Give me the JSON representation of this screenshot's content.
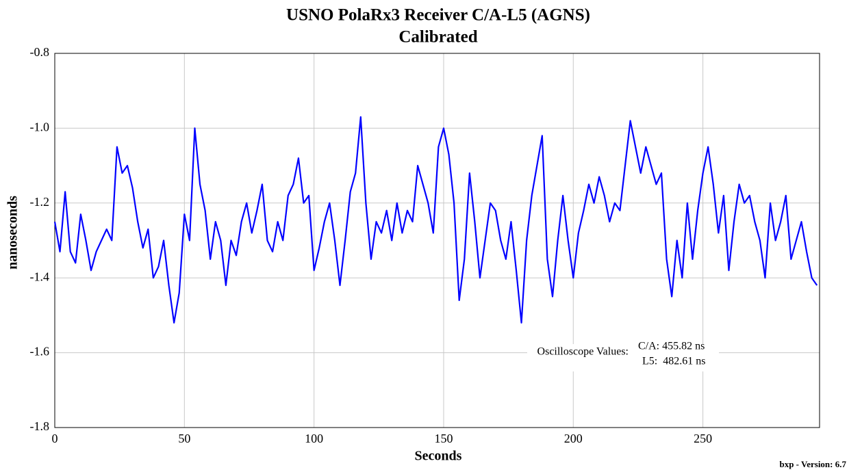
{
  "chart_data": {
    "type": "line",
    "title": "USNO PolaRx3 Receiver C/A-L5 (AGNS)",
    "subtitle": "Calibrated",
    "x_label": "Seconds",
    "y_label": "nanoseconds",
    "footer": "bxp - Version: 6.7",
    "annotation": {
      "label": "Oscilloscope Values:",
      "lines": [
        "C/A: 455.82 ns",
        "L5:  482.61 ns"
      ]
    },
    "x": [
      0,
      2,
      4,
      6,
      8,
      10,
      12,
      14,
      16,
      18,
      20,
      22,
      24,
      26,
      28,
      30,
      32,
      34,
      36,
      38,
      40,
      42,
      44,
      46,
      48,
      50,
      52,
      54,
      56,
      58,
      60,
      62,
      64,
      66,
      68,
      70,
      72,
      74,
      76,
      78,
      80,
      82,
      84,
      86,
      88,
      90,
      92,
      94,
      96,
      98,
      100,
      102,
      104,
      106,
      108,
      110,
      112,
      114,
      116,
      118,
      120,
      122,
      124,
      126,
      128,
      130,
      132,
      134,
      136,
      138,
      140,
      142,
      144,
      146,
      148,
      150,
      152,
      154,
      156,
      158,
      160,
      162,
      164,
      166,
      168,
      170,
      172,
      174,
      176,
      178,
      180,
      182,
      184,
      186,
      188,
      190,
      192,
      194,
      196,
      198,
      200,
      202,
      204,
      206,
      208,
      210,
      212,
      214,
      216,
      218,
      220,
      222,
      224,
      226,
      228,
      230,
      232,
      234,
      236,
      238,
      240,
      242,
      244,
      246,
      248,
      250,
      252,
      254,
      256,
      258,
      260,
      262,
      264,
      266,
      268,
      270,
      272,
      274,
      276,
      278,
      280,
      282,
      284,
      286,
      288,
      290,
      292,
      294
    ],
    "series": [
      {
        "name": "C/A-L5",
        "color": "#0000ff",
        "values": [
          -1.25,
          -1.33,
          -1.17,
          -1.33,
          -1.36,
          -1.23,
          -1.3,
          -1.38,
          -1.33,
          -1.3,
          -1.27,
          -1.3,
          -1.05,
          -1.12,
          -1.1,
          -1.16,
          -1.25,
          -1.32,
          -1.27,
          -1.4,
          -1.37,
          -1.3,
          -1.42,
          -1.52,
          -1.44,
          -1.23,
          -1.3,
          -1.0,
          -1.15,
          -1.22,
          -1.35,
          -1.25,
          -1.3,
          -1.42,
          -1.3,
          -1.34,
          -1.25,
          -1.2,
          -1.28,
          -1.22,
          -1.15,
          -1.3,
          -1.33,
          -1.25,
          -1.3,
          -1.18,
          -1.15,
          -1.08,
          -1.2,
          -1.18,
          -1.38,
          -1.32,
          -1.25,
          -1.2,
          -1.3,
          -1.42,
          -1.3,
          -1.17,
          -1.12,
          -0.97,
          -1.2,
          -1.35,
          -1.25,
          -1.28,
          -1.22,
          -1.3,
          -1.2,
          -1.28,
          -1.22,
          -1.25,
          -1.1,
          -1.15,
          -1.2,
          -1.28,
          -1.05,
          -1.0,
          -1.07,
          -1.2,
          -1.46,
          -1.35,
          -1.12,
          -1.25,
          -1.4,
          -1.3,
          -1.2,
          -1.22,
          -1.3,
          -1.35,
          -1.25,
          -1.38,
          -1.52,
          -1.3,
          -1.18,
          -1.1,
          -1.02,
          -1.35,
          -1.45,
          -1.3,
          -1.18,
          -1.3,
          -1.4,
          -1.28,
          -1.22,
          -1.15,
          -1.2,
          -1.13,
          -1.18,
          -1.25,
          -1.2,
          -1.22,
          -1.1,
          -0.98,
          -1.05,
          -1.12,
          -1.05,
          -1.1,
          -1.15,
          -1.12,
          -1.35,
          -1.45,
          -1.3,
          -1.4,
          -1.2,
          -1.35,
          -1.22,
          -1.12,
          -1.05,
          -1.15,
          -1.28,
          -1.18,
          -1.38,
          -1.25,
          -1.15,
          -1.2,
          -1.18,
          -1.25,
          -1.3,
          -1.4,
          -1.2,
          -1.3,
          -1.25,
          -1.18,
          -1.35,
          -1.3,
          -1.25,
          -1.33,
          -1.4,
          -1.42
        ]
      }
    ],
    "xlim": [
      0,
      295
    ],
    "xticks": [
      0,
      50,
      100,
      150,
      200,
      250
    ],
    "ylim": [
      -1.8,
      -0.8
    ],
    "yticks": [
      -1.8,
      -1.6,
      -1.4,
      -1.2,
      {
        "value": -1,
        "label": "-1.0"
      },
      -0.8
    ],
    "grid": true
  }
}
